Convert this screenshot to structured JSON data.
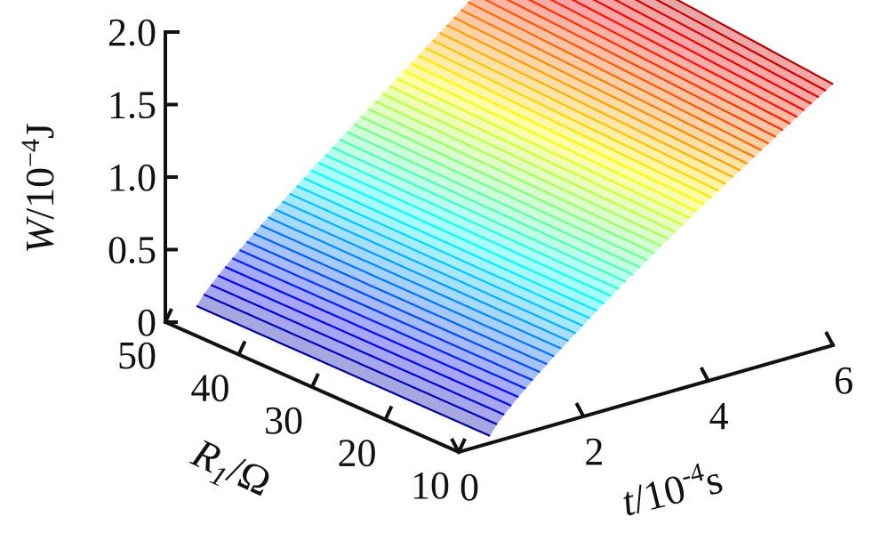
{
  "chart_data": {
    "type": "surface",
    "title": "",
    "zlabel": {
      "var": "W",
      "rest": "/10",
      "exp": "−4",
      "unit": "J"
    },
    "ylabel": {
      "var": "R",
      "sub": "1",
      "rest": "/Ω"
    },
    "xlabel": {
      "var": "t",
      "rest": "/10",
      "exp": "-4",
      "unit": "s"
    },
    "x_ticks": [
      "0",
      "2",
      "4",
      "6"
    ],
    "y_ticks": [
      "10",
      "20",
      "30",
      "40",
      "50"
    ],
    "z_ticks": [
      "0",
      "0.5",
      "1.0",
      "1.5",
      "2.0"
    ],
    "xlim": [
      0,
      6
    ],
    "ylim": [
      10,
      50
    ],
    "zlim": [
      0,
      2.0
    ],
    "colormap": "jet",
    "grid": false,
    "surface": {
      "t": [
        0.5,
        6
      ],
      "R1": [
        10,
        50
      ],
      "W_at_t_start": 0.05,
      "W_at_t_end": 1.8,
      "W_at_t_end_R1_min": 1.8,
      "W_at_t_end_R1_max": 2.0
    }
  }
}
